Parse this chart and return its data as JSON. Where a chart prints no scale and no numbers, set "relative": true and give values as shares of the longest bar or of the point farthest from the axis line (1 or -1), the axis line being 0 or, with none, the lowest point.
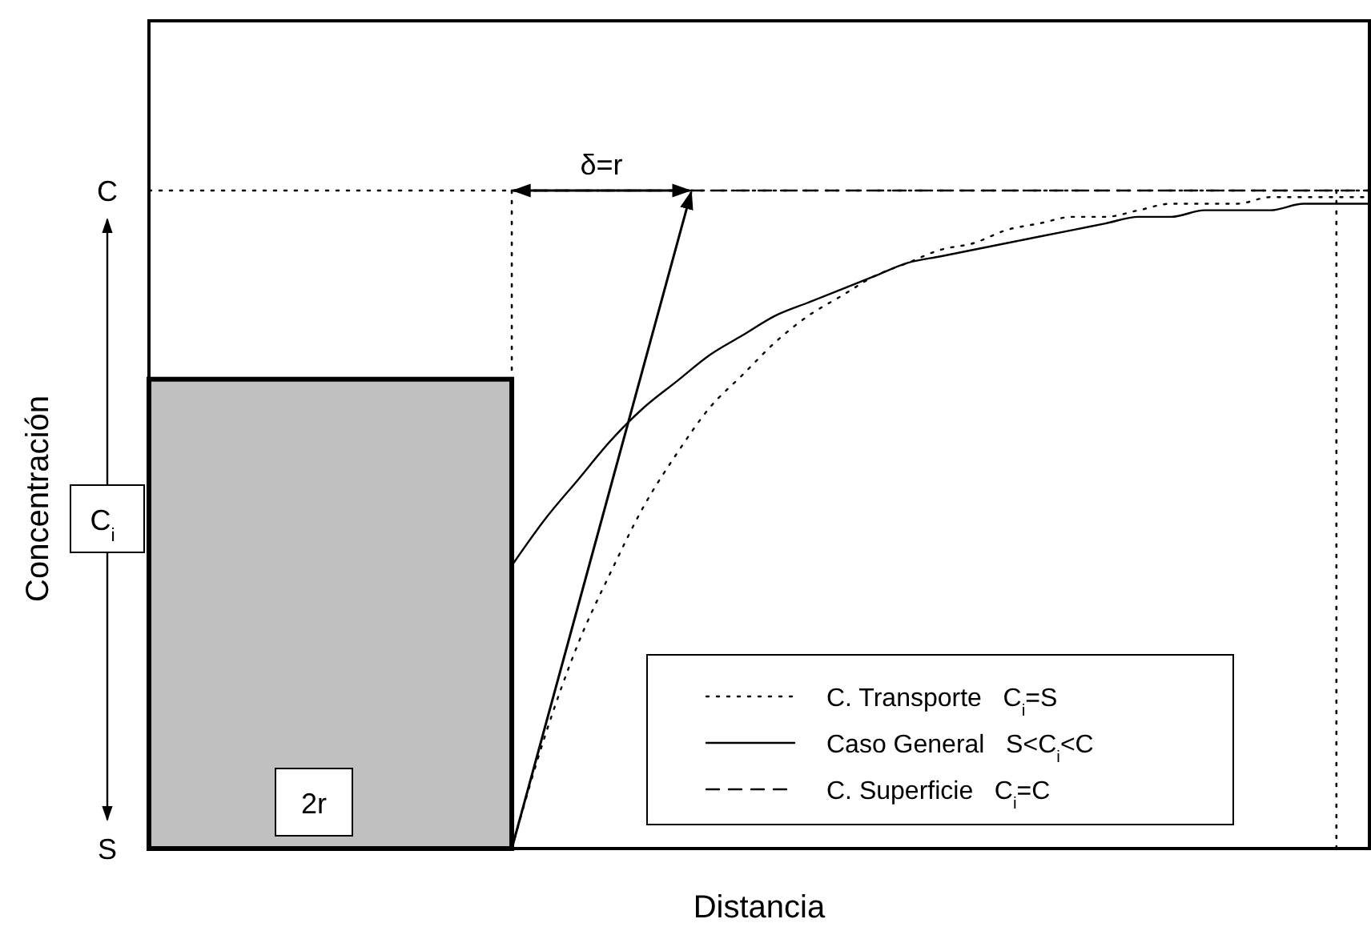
{
  "chart_data": {
    "type": "line",
    "xlabel": "Distancia",
    "ylabel": "Concentración",
    "categories": [
      null,
      null,
      null,
      null,
      null,
      null,
      null,
      null,
      null,
      null,
      null,
      null,
      null,
      null,
      null,
      null,
      null,
      null,
      null,
      null,
      null,
      null,
      null,
      null,
      null,
      null,
      null,
      null,
      null,
      null,
      null,
      null,
      null,
      null,
      null,
      null,
      null,
      null
    ],
    "relative": true,
    "series": [
      {
        "name": "C. Transporte   C$_{i}$=S",
        "color": "#000000",
        "line_style": "dotted",
        "values": [
          null,
          null,
          null,
          null,
          null,
          null,
          null,
          null,
          null,
          null,
          null,
          0,
          0.17,
          0.31,
          0.42,
          0.52,
          0.6,
          0.67,
          0.72,
          0.77,
          0.81,
          0.84,
          0.87,
          0.89,
          0.91,
          0.92,
          0.94,
          0.95,
          0.96,
          0.96,
          0.97,
          0.98,
          0.98,
          0.98,
          0.99,
          0.99,
          0.99,
          0.99
        ]
      },
      {
        "name": "Caso General   S<C$_{i}$<C",
        "color": "#000000",
        "line_style": "solid",
        "values": [
          null,
          null,
          null,
          null,
          null,
          null,
          null,
          null,
          null,
          null,
          null,
          0.43,
          0.5,
          0.56,
          0.62,
          0.67,
          0.71,
          0.75,
          0.78,
          0.81,
          0.83,
          0.85,
          0.87,
          0.89,
          0.9,
          0.91,
          0.92,
          0.93,
          0.94,
          0.95,
          0.96,
          0.96,
          0.97,
          0.97,
          0.97,
          0.98,
          0.98,
          0.98
        ]
      },
      {
        "name": "C. Superficie   C$_{i}$=C",
        "color": "#000000",
        "line_style": "dashed",
        "values": [
          null,
          null,
          null,
          null,
          null,
          null,
          null,
          null,
          null,
          null,
          null,
          1,
          1,
          1,
          1,
          1,
          1,
          1,
          1,
          1,
          1,
          1,
          1,
          1,
          1,
          1,
          1,
          1,
          1,
          1,
          1,
          1,
          1,
          1,
          1,
          1,
          1,
          1
        ]
      }
    ],
    "ref_lines": [
      {
        "axis": "y",
        "value": 1,
        "line_style": "dotted"
      }
    ],
    "annotations": [
      "δ=r",
      "2r",
      "C$_{i}$",
      "C",
      "S"
    ],
    "legend": "bottom right"
  }
}
